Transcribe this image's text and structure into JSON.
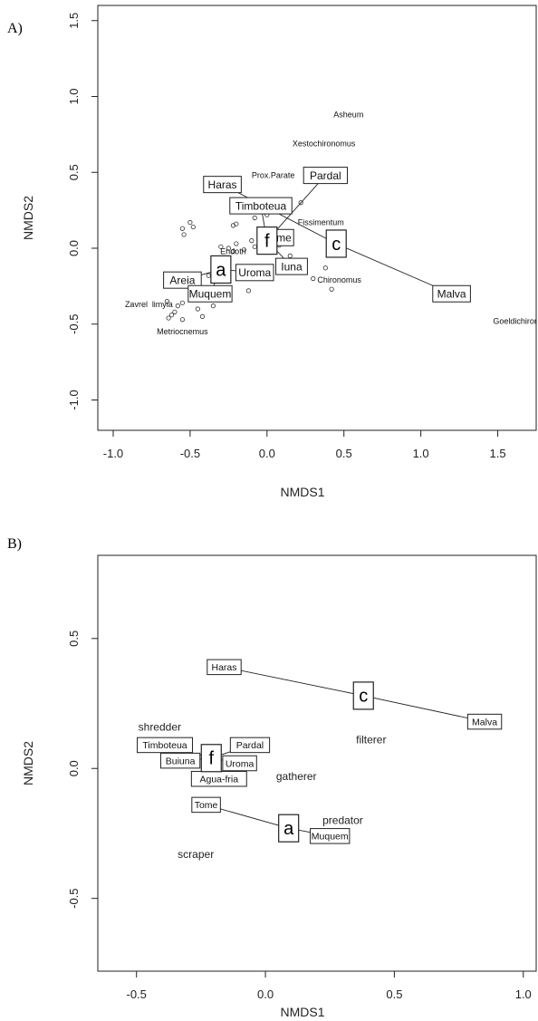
{
  "chart_data": [
    {
      "panel": "A)",
      "type": "scatter",
      "xlabel": "NMDS1",
      "ylabel": "NMDS2",
      "xlim": [
        -1.1,
        1.75
      ],
      "ylim": [
        -1.2,
        1.6
      ],
      "xticks": [
        -1.0,
        -0.5,
        0.0,
        0.5,
        1.0,
        1.5
      ],
      "xtick_labels": [
        "-1.0",
        "-0.5",
        "0.0",
        "0.5",
        "1.0",
        "1.5"
      ],
      "yticks": [
        -1.0,
        -0.5,
        0.0,
        0.5,
        1.0,
        1.5
      ],
      "ytick_labels": [
        "-1.0",
        "-0.5",
        "0.0",
        "0.5",
        "1.0",
        "1.5"
      ],
      "species_points": [
        {
          "x": -0.55,
          "y": 0.13
        },
        {
          "x": -0.5,
          "y": 0.17
        },
        {
          "x": -0.48,
          "y": 0.14
        },
        {
          "x": -0.54,
          "y": 0.09
        },
        {
          "x": -0.3,
          "y": 0.01
        },
        {
          "x": -0.25,
          "y": 0.0
        },
        {
          "x": -0.22,
          "y": -0.02
        },
        {
          "x": -0.2,
          "y": 0.03
        },
        {
          "x": -0.15,
          "y": -0.01
        },
        {
          "x": -0.1,
          "y": 0.05
        },
        {
          "x": -0.08,
          "y": 0.01
        },
        {
          "x": -0.05,
          "y": 0.02
        },
        {
          "x": -0.2,
          "y": 0.16
        },
        {
          "x": -0.22,
          "y": 0.15
        },
        {
          "x": -0.08,
          "y": 0.2
        },
        {
          "x": 0.0,
          "y": 0.22
        },
        {
          "x": 0.03,
          "y": 0.05
        },
        {
          "x": 0.08,
          "y": 0.02
        },
        {
          "x": 0.15,
          "y": -0.05
        },
        {
          "x": 0.12,
          "y": -0.15
        },
        {
          "x": -0.12,
          "y": -0.28
        },
        {
          "x": -0.55,
          "y": -0.36
        },
        {
          "x": -0.58,
          "y": -0.38
        },
        {
          "x": -0.62,
          "y": -0.44
        },
        {
          "x": -0.55,
          "y": -0.47
        },
        {
          "x": -0.64,
          "y": -0.46
        },
        {
          "x": -0.6,
          "y": -0.42
        },
        {
          "x": -0.65,
          "y": -0.35
        },
        {
          "x": -0.45,
          "y": -0.4
        },
        {
          "x": -0.42,
          "y": -0.45
        },
        {
          "x": -0.35,
          "y": -0.38
        },
        {
          "x": 0.38,
          "y": -0.13
        },
        {
          "x": 0.42,
          "y": -0.27
        },
        {
          "x": 0.3,
          "y": -0.2
        },
        {
          "x": 0.22,
          "y": 0.3
        },
        {
          "x": 0.1,
          "y": 0.28
        },
        {
          "x": -0.45,
          "y": -0.3
        },
        {
          "x": -0.38,
          "y": -0.18
        }
      ],
      "species_labels": [
        {
          "text": "Asheum",
          "x": 0.53,
          "y": 0.88
        },
        {
          "text": "Xestochironomus",
          "x": 0.37,
          "y": 0.69
        },
        {
          "text": "Prox.Parate",
          "x": 0.04,
          "y": 0.48
        },
        {
          "text": "Fissimentum",
          "x": 0.35,
          "y": 0.17
        },
        {
          "text": "Endotri",
          "x": -0.22,
          "y": -0.02
        },
        {
          "text": "Chironomus",
          "x": 0.47,
          "y": -0.21
        },
        {
          "text": "Zavrel",
          "x": -0.85,
          "y": -0.37
        },
        {
          "text": "limyia",
          "x": -0.68,
          "y": -0.37
        },
        {
          "text": "Metriocnemus",
          "x": -0.55,
          "y": -0.55
        },
        {
          "text": "Goeldichironomu",
          "x": 1.67,
          "y": -0.48
        }
      ],
      "sites": [
        {
          "label": "Haras",
          "x": -0.29,
          "y": 0.42
        },
        {
          "label": "Pardal",
          "x": 0.38,
          "y": 0.48
        },
        {
          "label": "Timboteua",
          "x": -0.04,
          "y": 0.28
        },
        {
          "label": "me",
          "x": 0.11,
          "y": 0.07
        },
        {
          "label": "Iuna",
          "x": 0.16,
          "y": -0.12
        },
        {
          "label": "Uroma",
          "x": -0.08,
          "y": -0.16
        },
        {
          "label": "Areia",
          "x": -0.55,
          "y": -0.21
        },
        {
          "label": "Muquem",
          "x": -0.37,
          "y": -0.3
        },
        {
          "label": "Malva",
          "x": 1.2,
          "y": -0.3
        }
      ],
      "groups": [
        {
          "label": "a",
          "x": -0.3,
          "y": -0.14,
          "members": [
            "Areia",
            "Muquem",
            "Uroma"
          ]
        },
        {
          "label": "f",
          "x": 0.0,
          "y": 0.05,
          "members": [
            "Pardal",
            "Timboteua",
            "me",
            "Iuna"
          ]
        },
        {
          "label": "c",
          "x": 0.45,
          "y": 0.03,
          "members": [
            "Haras",
            "Malva"
          ]
        }
      ]
    },
    {
      "panel": "B)",
      "type": "scatter",
      "xlabel": "NMDS1",
      "ylabel": "NMDS2",
      "xlim": [
        -0.65,
        1.05
      ],
      "ylim": [
        -0.78,
        0.82
      ],
      "xticks": [
        -0.5,
        0.0,
        0.5,
        1.0
      ],
      "xtick_labels": [
        "-0.5",
        "0.0",
        "0.5",
        "1.0"
      ],
      "yticks": [
        -0.5,
        0.0,
        0.5
      ],
      "ytick_labels": [
        "-0.5",
        "0.0",
        "0.5"
      ],
      "guilds": [
        {
          "text": "shredder",
          "x": -0.41,
          "y": 0.16
        },
        {
          "text": "filterer",
          "x": 0.41,
          "y": 0.11
        },
        {
          "text": "gatherer",
          "x": 0.12,
          "y": -0.03
        },
        {
          "text": "predator",
          "x": 0.3,
          "y": -0.2
        },
        {
          "text": "scraper",
          "x": -0.27,
          "y": -0.33
        }
      ],
      "sites": [
        {
          "label": "Haras",
          "x": -0.16,
          "y": 0.39
        },
        {
          "label": "Malva",
          "x": 0.85,
          "y": 0.18
        },
        {
          "label": "Timboteua",
          "x": -0.39,
          "y": 0.09
        },
        {
          "label": "Pardal",
          "x": -0.06,
          "y": 0.09
        },
        {
          "label": "Buiuna",
          "x": -0.33,
          "y": 0.03
        },
        {
          "label": "Uroma",
          "x": -0.1,
          "y": 0.02
        },
        {
          "label": "Agua-fria",
          "x": -0.18,
          "y": -0.04
        },
        {
          "label": "Tome",
          "x": -0.23,
          "y": -0.14
        },
        {
          "label": "Muquem",
          "x": 0.25,
          "y": -0.26
        }
      ],
      "groups": [
        {
          "label": "c",
          "x": 0.38,
          "y": 0.28,
          "members": [
            "Haras",
            "Malva"
          ]
        },
        {
          "label": "f",
          "x": -0.21,
          "y": 0.04,
          "members": [
            "Timboteua",
            "Pardal",
            "Buiuna",
            "Uroma",
            "Agua-fria"
          ]
        },
        {
          "label": "a",
          "x": 0.09,
          "y": -0.23,
          "members": [
            "Tome",
            "Muquem"
          ]
        }
      ]
    }
  ]
}
